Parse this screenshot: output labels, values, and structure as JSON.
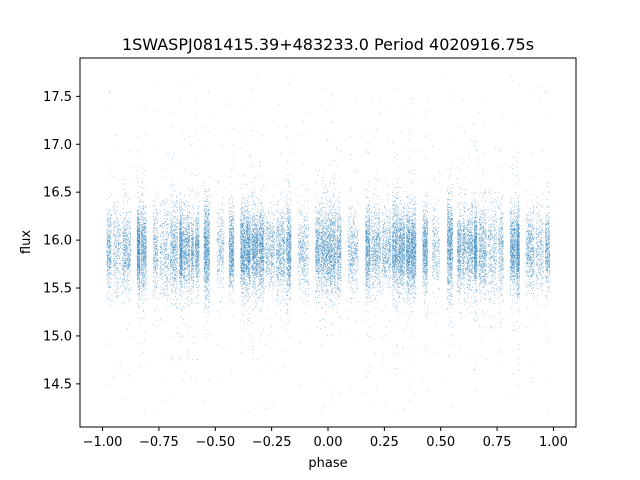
{
  "chart_data": {
    "type": "scatter",
    "title": "1SWASPJ081415.39+483233.0 Period 4020916.75s",
    "xlabel": "phase",
    "ylabel": "flux",
    "xlim": [
      -1.1,
      1.1
    ],
    "ylim": [
      14.05,
      17.9
    ],
    "grid": false,
    "legend": "none",
    "marker_color": "#1f77b4",
    "xticks": [
      -1.0,
      -0.75,
      -0.5,
      -0.25,
      0.0,
      0.25,
      0.5,
      0.75,
      1.0
    ],
    "xtick_labels": [
      "−1.00",
      "−0.75",
      "−0.50",
      "−0.25",
      "0.00",
      "0.25",
      "0.50",
      "0.75",
      "1.00"
    ],
    "yticks": [
      14.5,
      15.0,
      15.5,
      16.0,
      16.5,
      17.0,
      17.5
    ],
    "ytick_labels": [
      "14.5",
      "15.0",
      "15.5",
      "16.0",
      "16.5",
      "17.0",
      "17.5"
    ],
    "series": [
      {
        "phase_range": [
          -1.0,
          1.0
        ],
        "flux_core_range": [
          15.55,
          16.3
        ],
        "flux_mean": 15.9,
        "flux_outlier_range": [
          14.2,
          17.75
        ],
        "n_points_approx": 28000,
        "symmetric_about_phase_zero": true
      }
    ]
  }
}
